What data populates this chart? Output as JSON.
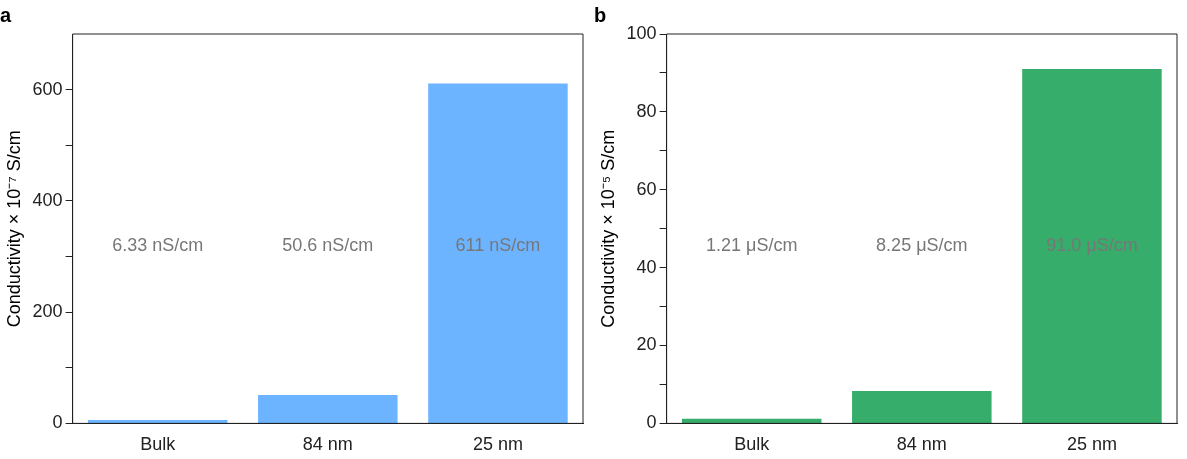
{
  "chart_data": [
    {
      "type": "bar",
      "title": "a",
      "ylabel": "Conductivity × 10⁻⁷ S/cm",
      "categories": [
        "Bulk",
        "84 nm",
        "25 nm"
      ],
      "values": [
        6,
        51,
        611
      ],
      "color": "#6cb4ff",
      "annotations": [
        "6.33 nS/cm",
        "50.6 nS/cm",
        "611 nS/cm"
      ],
      "ylim": [
        0,
        700
      ],
      "yticks": [
        0,
        {
          "value": 100,
          "label": null
        },
        200,
        {
          "value": 300,
          "label": null
        },
        400,
        {
          "value": 500,
          "label": null
        },
        600
      ]
    },
    {
      "type": "bar",
      "title": "b",
      "ylabel": "Conductivity × 10⁻⁵ S/cm",
      "categories": [
        "Bulk",
        "84 nm",
        "25 nm"
      ],
      "values": [
        1.2,
        8.3,
        91
      ],
      "color": "#36ad6a",
      "annotations": [
        "1.21 μS/cm",
        "8.25 μS/cm",
        "91.0 μS/cm"
      ],
      "ylim": [
        0,
        100
      ],
      "yticks": [
        0,
        {
          "value": 10,
          "label": null
        },
        20,
        {
          "value": 30,
          "label": null
        },
        40,
        {
          "value": 50,
          "label": null
        },
        60,
        {
          "value": 70,
          "label": null
        },
        80,
        {
          "value": 90,
          "label": null
        },
        100
      ]
    }
  ]
}
